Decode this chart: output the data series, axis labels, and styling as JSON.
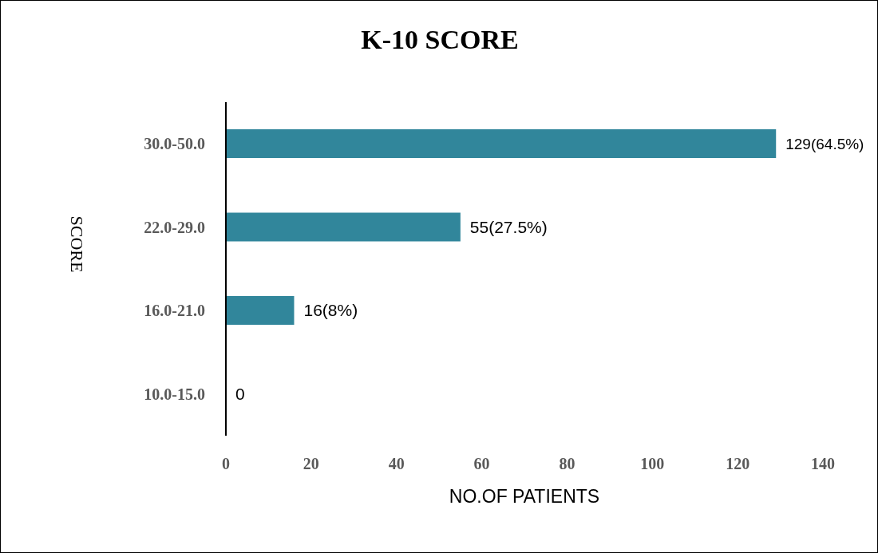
{
  "chart_data": {
    "type": "bar",
    "orientation": "horizontal",
    "title": "K-10 SCORE",
    "xlabel": "NO.OF PATIENTS",
    "ylabel": "SCORE",
    "categories": [
      "30.0-50.0",
      "22.0-29.0",
      "16.0-21.0",
      "10.0-15.0"
    ],
    "values": [
      129,
      55,
      16,
      0
    ],
    "color": "#31869b",
    "value_labels": [
      "129(64.5%)",
      "55(27.5%)",
      "16(8%)",
      "0"
    ],
    "xlim": [
      0,
      140
    ],
    "xticks": [
      0,
      20,
      40,
      60,
      80,
      100,
      120,
      140
    ],
    "grid": false,
    "legend": false
  }
}
